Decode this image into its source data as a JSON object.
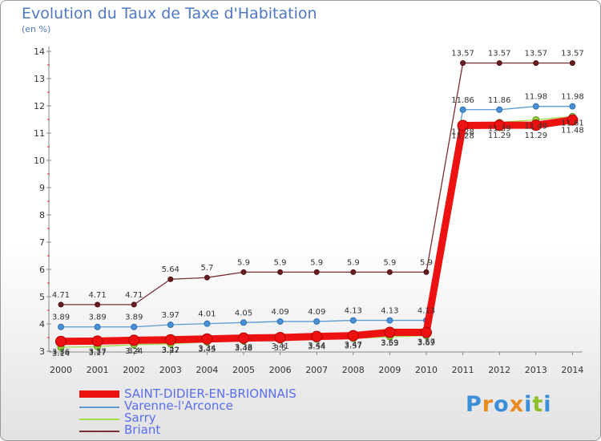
{
  "title": "Evolution du Taux de Taxe d'Habitation",
  "subtitle": "(en %)",
  "brand": {
    "letters": [
      "P",
      "r",
      "o",
      "x",
      "i",
      "t",
      "i"
    ],
    "colors": [
      "#3a8fd8",
      "#e88a20",
      "#3a8fd8",
      "#e88a20",
      "#3a8fd8",
      "#8cbf2a",
      "#3a8fd8"
    ]
  },
  "chart_data": {
    "type": "line",
    "x": [
      "2000",
      "2001",
      "2002",
      "2003",
      "2004",
      "2005",
      "2006",
      "2007",
      "2008",
      "2009",
      "2010",
      "2011",
      "2012",
      "2013",
      "2014"
    ],
    "ylim": [
      3,
      14
    ],
    "yticks": [
      "3",
      "4",
      "5",
      "6",
      "7",
      "8",
      "9",
      "10",
      "11",
      "12",
      "13",
      "14"
    ],
    "grid": false,
    "legend_position": "bottom-left",
    "series": [
      {
        "name": "SAINT-DIDIER-EN-BRIONNAIS",
        "color": "#ee1111",
        "values": [
          3.36,
          3.37,
          3.4,
          3.42,
          3.45,
          3.48,
          3.5,
          3.54,
          3.57,
          3.69,
          3.69,
          11.28,
          11.29,
          11.29,
          11.48
        ],
        "labels": [
          "3.36",
          "3.37",
          "3.4",
          "3.42",
          "3.45",
          "3.48",
          "3.5",
          "3.54",
          "3.57",
          "3.69",
          "3.69",
          "11.28",
          "11.29",
          "11.29",
          "11.48"
        ]
      },
      {
        "name": "Varenne-l'Arconce",
        "color": "#5b9ad5",
        "values": [
          3.89,
          3.89,
          3.89,
          3.97,
          4.01,
          4.05,
          4.09,
          4.09,
          4.13,
          4.13,
          4.13,
          11.86,
          11.86,
          11.98,
          11.98
        ],
        "labels": [
          "3.89",
          "3.89",
          "3.89",
          "3.97",
          "4.01",
          "4.05",
          "4.09",
          "4.09",
          "4.13",
          "4.13",
          "4.13",
          "11.86",
          "11.86",
          "11.98",
          "11.98"
        ]
      },
      {
        "name": "Sarry",
        "color": "#9edb45",
        "values": [
          3.14,
          3.17,
          3.24,
          3.27,
          3.34,
          3.38,
          3.41,
          3.44,
          3.47,
          3.53,
          3.57,
          11.28,
          11.39,
          11.49,
          11.61
        ],
        "labels": [
          "3.14",
          "3.17",
          "3.24",
          "3.27",
          "3.34",
          "3.38",
          "3.41",
          "3.44",
          "3.47",
          "3.53",
          "3.57",
          "11.28",
          "11.39",
          "11.49",
          "11.61"
        ]
      },
      {
        "name": "Briant",
        "color": "#7a2e32",
        "values": [
          4.71,
          4.71,
          4.71,
          5.64,
          5.7,
          5.9,
          5.9,
          5.9,
          5.9,
          5.9,
          5.9,
          13.57,
          13.57,
          13.57,
          13.57
        ],
        "labels": [
          "4.71",
          "4.71",
          "4.71",
          "5.64",
          "5.7",
          "5.9",
          "5.9",
          "5.9",
          "5.9",
          "5.9",
          "5.9",
          "13.57",
          "13.57",
          "13.57",
          "13.57"
        ]
      }
    ]
  }
}
